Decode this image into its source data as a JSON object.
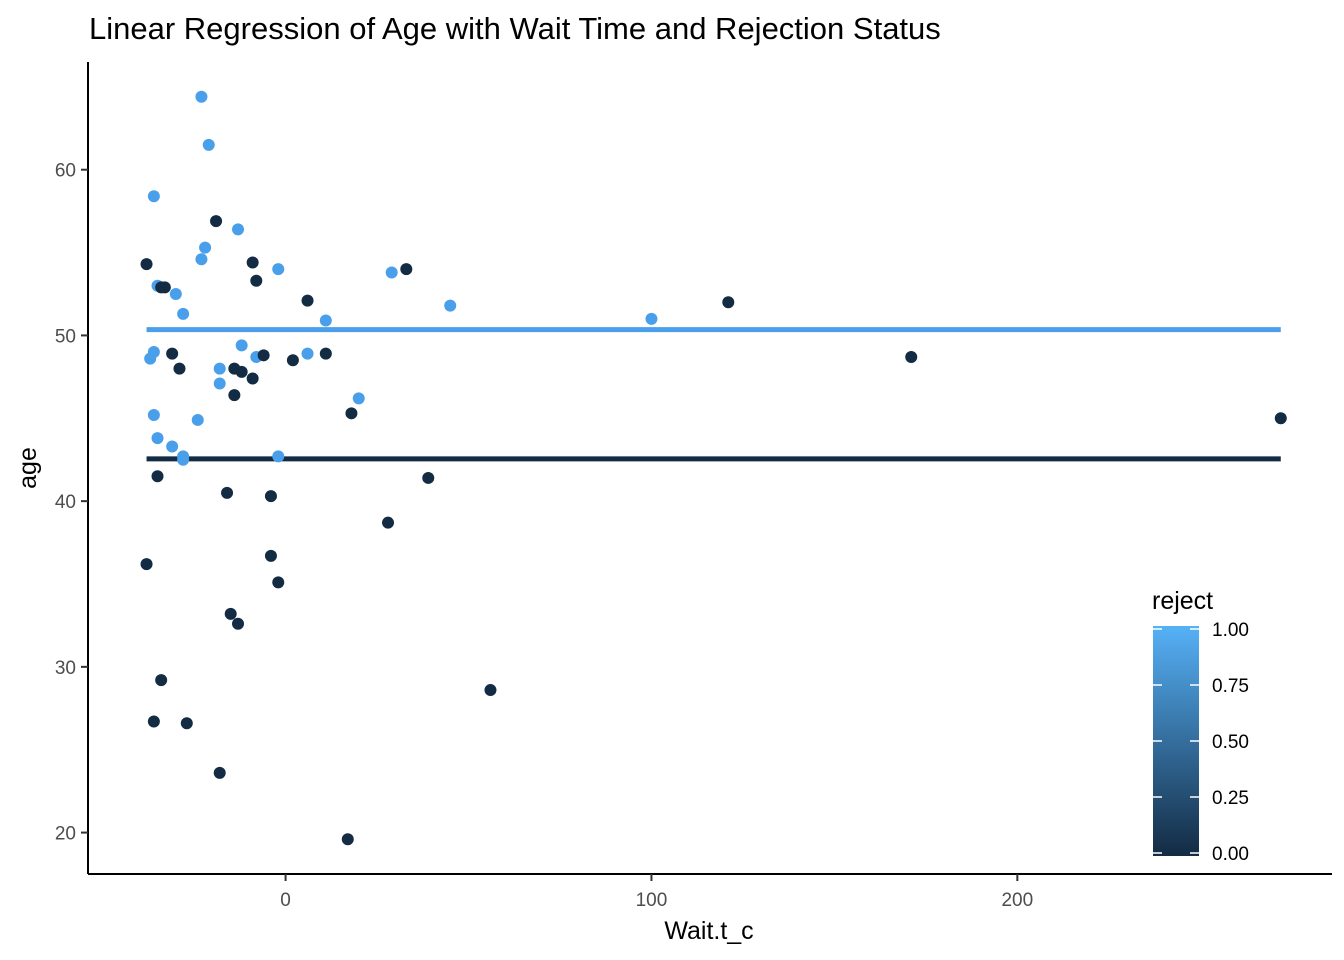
{
  "chart_data": {
    "type": "scatter",
    "title": "Linear Regression of Age with Wait Time and Rejection Status",
    "xlabel": "Wait.t_c",
    "ylabel": "age",
    "xlim": [
      -54,
      286
    ],
    "ylim": [
      17.5,
      66.5
    ],
    "x_ticks": [
      0,
      100,
      200
    ],
    "y_ticks": [
      20,
      30,
      40,
      50,
      60
    ],
    "grid": false,
    "legend": {
      "title": "reject",
      "placement": "right-bottom",
      "ticks": [
        "1.00",
        "0.75",
        "0.50",
        "0.25",
        "0.00"
      ],
      "tick_values": [
        1.0,
        0.75,
        0.5,
        0.25,
        0.0
      ],
      "low_color": "#132B43",
      "high_color": "#56B1F7"
    },
    "series": [
      {
        "reject": 1,
        "color": "#4a9fea",
        "points": [
          [
            -23,
            64.4
          ],
          [
            -21,
            61.5
          ],
          [
            -36,
            58.4
          ],
          [
            -13,
            56.4
          ],
          [
            -22,
            55.3
          ],
          [
            -23,
            54.6
          ],
          [
            -2,
            54.0
          ],
          [
            -35,
            53.0
          ],
          [
            29,
            53.8
          ],
          [
            -30,
            52.5
          ],
          [
            45,
            51.8
          ],
          [
            -28,
            51.3
          ],
          [
            11,
            50.9
          ],
          [
            100,
            51.0
          ],
          [
            -36,
            49.0
          ],
          [
            -37,
            48.6
          ],
          [
            -12,
            49.4
          ],
          [
            6,
            48.9
          ],
          [
            -8,
            48.7
          ],
          [
            -18,
            48.0
          ],
          [
            -18,
            47.1
          ],
          [
            20,
            46.2
          ],
          [
            -36,
            45.2
          ],
          [
            -24,
            44.9
          ],
          [
            -35,
            43.8
          ],
          [
            -31,
            43.3
          ],
          [
            -28,
            42.7
          ],
          [
            -28,
            42.5
          ],
          [
            -2,
            42.7
          ]
        ]
      },
      {
        "reject": 0,
        "color": "#132B43",
        "points": [
          [
            -19,
            56.9
          ],
          [
            -38,
            54.3
          ],
          [
            -9,
            54.4
          ],
          [
            33,
            54.0
          ],
          [
            -8,
            53.3
          ],
          [
            -33,
            52.9
          ],
          [
            -34,
            52.9
          ],
          [
            6,
            52.1
          ],
          [
            121,
            52.0
          ],
          [
            -31,
            48.9
          ],
          [
            -6,
            48.8
          ],
          [
            11,
            48.9
          ],
          [
            2,
            48.5
          ],
          [
            171,
            48.7
          ],
          [
            -29,
            48.0
          ],
          [
            -14,
            48.0
          ],
          [
            -12,
            47.8
          ],
          [
            -9,
            47.4
          ],
          [
            -14,
            46.4
          ],
          [
            18,
            45.3
          ],
          [
            272,
            45.0
          ],
          [
            -35,
            41.5
          ],
          [
            39,
            41.4
          ],
          [
            -16,
            40.5
          ],
          [
            -4,
            40.3
          ],
          [
            28,
            38.7
          ],
          [
            -38,
            36.2
          ],
          [
            -4,
            36.7
          ],
          [
            -2,
            35.1
          ],
          [
            -15,
            33.2
          ],
          [
            -13,
            32.6
          ],
          [
            56,
            28.6
          ],
          [
            -34,
            29.2
          ],
          [
            -36,
            26.7
          ],
          [
            -27,
            26.6
          ],
          [
            -18,
            23.6
          ],
          [
            17,
            19.6
          ]
        ]
      }
    ],
    "lines": [
      {
        "reject": 1,
        "color": "#4a9fea",
        "x": [
          -38,
          272
        ],
        "y": [
          50.35,
          50.35
        ]
      },
      {
        "reject": 0,
        "color": "#132B43",
        "x": [
          -38,
          272
        ],
        "y": [
          42.55,
          42.55
        ]
      }
    ]
  }
}
